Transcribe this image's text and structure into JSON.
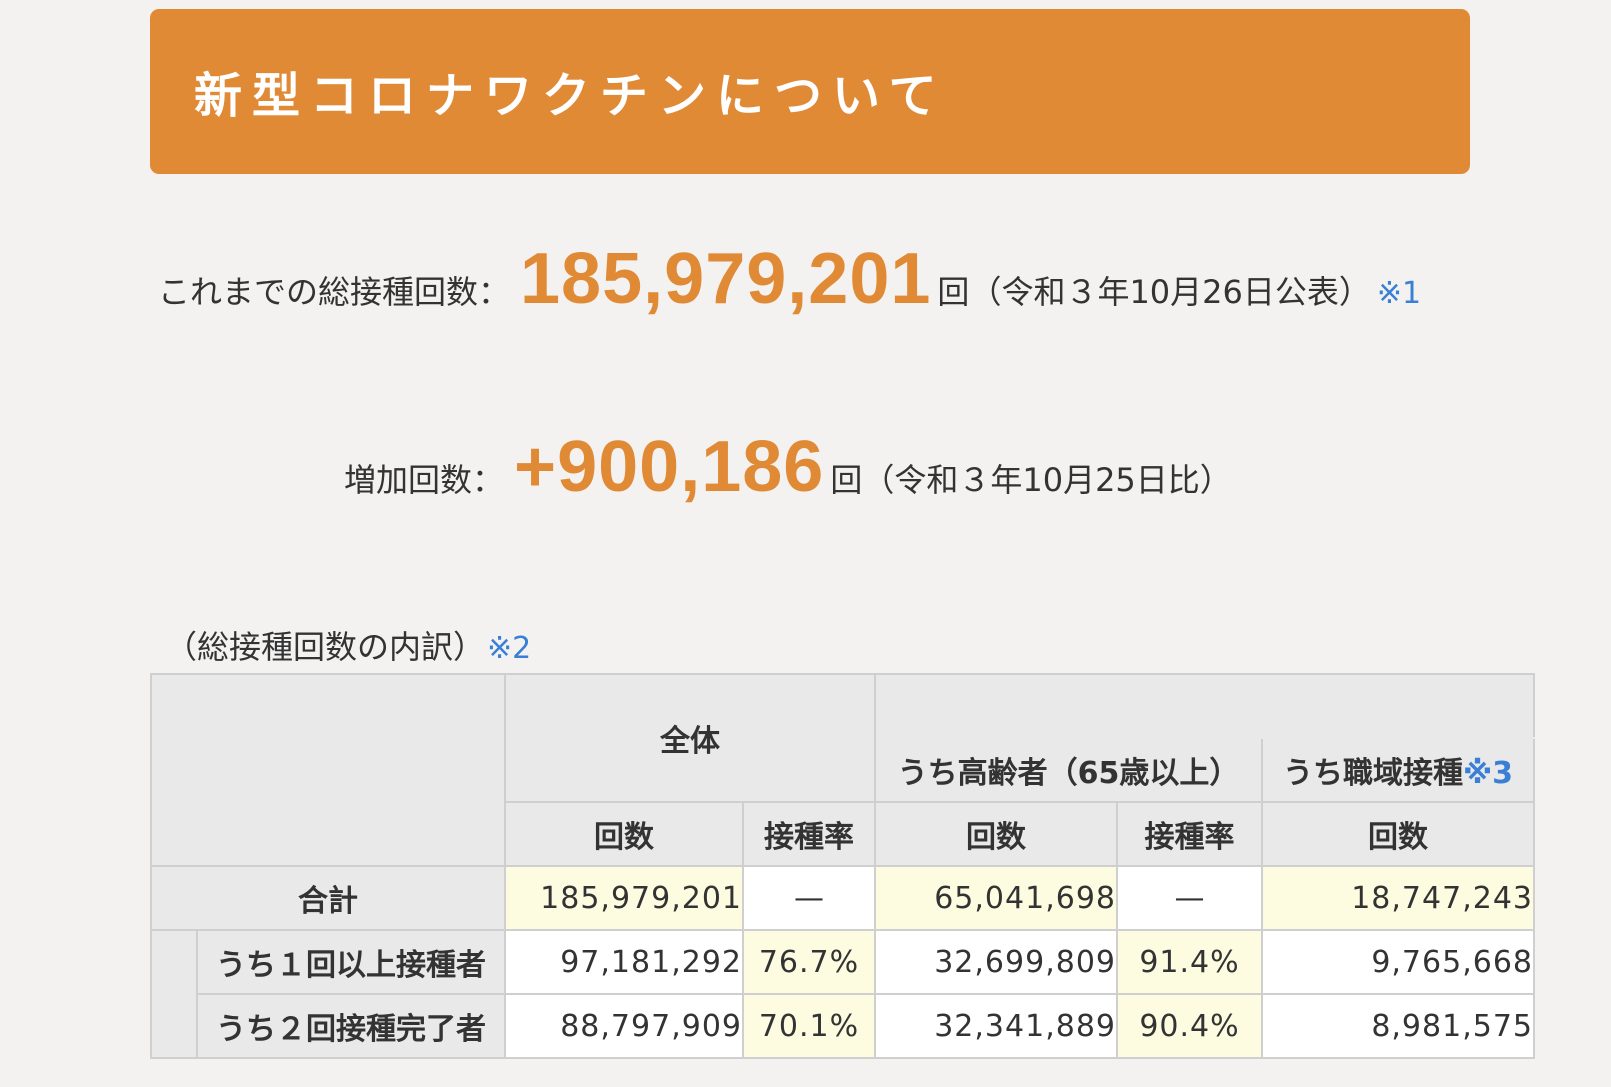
{
  "banner": {
    "title": "新型コロナワクチンについて"
  },
  "total": {
    "label": "これまでの総接種回数：",
    "value": "185,979,201",
    "unit": "回",
    "note": "（令和３年10月26日公表）",
    "ref": "※1"
  },
  "increase": {
    "label": "増加回数：",
    "value": "+900,186",
    "unit": "回",
    "note": "（令和３年10月25日比）"
  },
  "breakdown": {
    "caption": "（総接種回数の内訳）",
    "ref": "※2"
  },
  "table": {
    "group_all": "全体",
    "group_elderly": "うち高齢者（65歳以上）",
    "group_workplace": "うち職域接種",
    "group_workplace_ref": "※3",
    "col_count": "回数",
    "col_rate": "接種率",
    "rows": [
      {
        "label": "合計",
        "all_count": "185,979,201",
        "all_rate": "—",
        "elderly_count": "65,041,698",
        "elderly_rate": "—",
        "workplace_count": "18,747,243"
      },
      {
        "label": "うち１回以上接種者",
        "all_count": "97,181,292",
        "all_rate": "76.7%",
        "elderly_count": "32,699,809",
        "elderly_rate": "91.4%",
        "workplace_count": "9,765,668"
      },
      {
        "label": "うち２回接種完了者",
        "all_count": "88,797,909",
        "all_rate": "70.1%",
        "elderly_count": "32,341,889",
        "elderly_rate": "90.4%",
        "workplace_count": "8,981,575"
      }
    ]
  },
  "colors": {
    "accent": "#e08a36",
    "link": "#3a7fd6",
    "highlight_cell": "#fdfbe0",
    "header_cell": "#e9e9e9",
    "background": "#f3f2f1"
  }
}
